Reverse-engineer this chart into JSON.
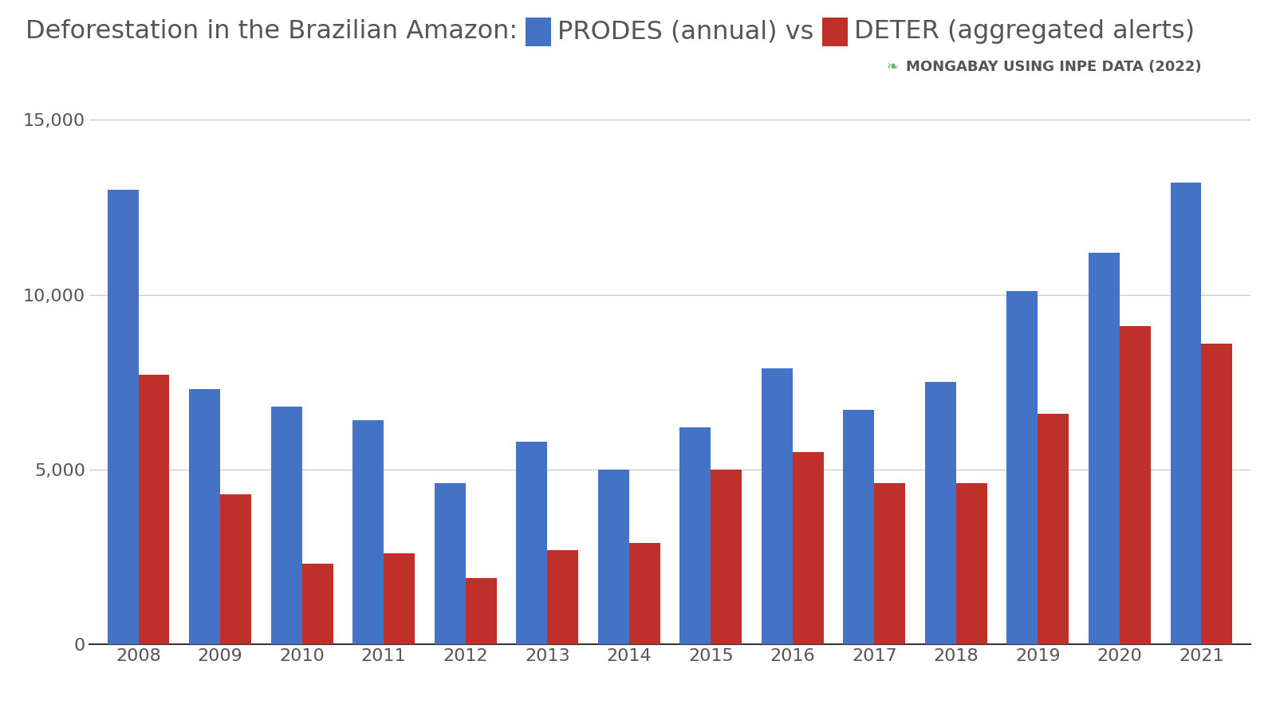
{
  "years": [
    "2008",
    "2009",
    "2010",
    "2011",
    "2012",
    "2013",
    "2014",
    "2015",
    "2016",
    "2017",
    "2018",
    "2019",
    "2020",
    "2021"
  ],
  "prodes": [
    13000,
    7300,
    6800,
    6400,
    4600,
    5800,
    5000,
    6200,
    7900,
    6700,
    7500,
    10100,
    11200,
    13200
  ],
  "deter": [
    7700,
    4300,
    2300,
    2600,
    1900,
    2700,
    2900,
    5000,
    5500,
    4600,
    4600,
    6600,
    9100,
    8600
  ],
  "prodes_color": "#4472C4",
  "deter_color": "#C0302A",
  "title_part1": "Deforestation in the Brazilian Amazon:",
  "title_legend_prodes": "PRODES (annual) vs",
  "title_legend_deter": "DETER (aggregated alerts)",
  "watermark": "MONGABAY USING INPE DATA (2022)",
  "watermark_icon_color": "#5cb85c",
  "ylim": [
    0,
    16000
  ],
  "yticks": [
    0,
    5000,
    10000,
    15000
  ],
  "background_color": "#ffffff",
  "grid_color": "#cccccc",
  "title_fontsize": 23,
  "tick_fontsize": 16,
  "bar_width": 0.38
}
